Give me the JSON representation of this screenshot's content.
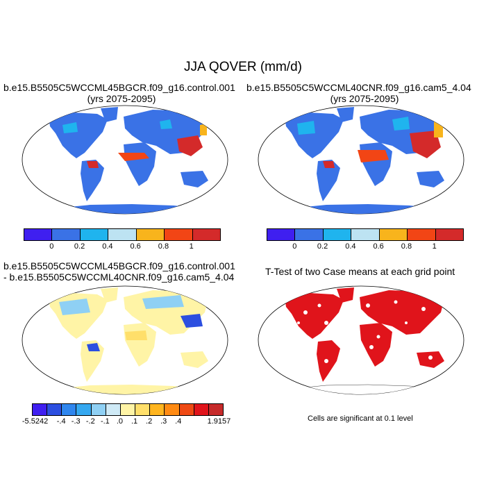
{
  "title": "JJA QOVER (mm/d)",
  "panels": {
    "top_left": {
      "title_line1": "b.e15.B5505C5WCCML45BGCR.f09_g16.control.001",
      "title_line2": "(yrs 2075-2095)"
    },
    "top_right": {
      "title_line1": "b.e15.B5505C5WCCML40CNR.f09_g16.cam5_4.04",
      "title_line2": "(yrs 2075-2095)"
    },
    "bottom_left": {
      "title_line1": "b.e15.B5505C5WCCML45BGCR.f09_g16.control.001",
      "title_line2": "- b.e15.B5505C5WCCML40CNR.f09_g16.cam5_4.04"
    },
    "bottom_right": {
      "title": "T-Test of two Case means at each grid point",
      "footnote": "Cells are significant at 0.1 level"
    }
  },
  "colorbars": {
    "top": {
      "colors": [
        "#3f1ff0",
        "#3a72e6",
        "#1fb4ee",
        "#bde3f2",
        "#f8b41c",
        "#f24515",
        "#d42a2a"
      ],
      "ticks": [
        "0",
        "0.2",
        "0.4",
        "0.6",
        "0.8",
        "1"
      ]
    },
    "bottom": {
      "colors": [
        "#3f1ff0",
        "#2c4fe0",
        "#2f86ee",
        "#35a8f0",
        "#8fd0f4",
        "#cfeaf6",
        "#fff4a6",
        "#ffdf6a",
        "#ffb51f",
        "#ff8a12",
        "#ef4a14",
        "#e0141b",
        "#c62a2a"
      ],
      "ticks": [
        "-5.5242",
        "-.4",
        "-.3",
        "-.2",
        "-.1",
        ".0",
        ".1",
        ".2",
        ".3",
        ".4",
        "1.9157"
      ]
    }
  },
  "map_colors": {
    "ocean": "#ffffff",
    "land_base": "#3a72e6",
    "land_mid": "#1fb4ee",
    "land_high": "#f24515",
    "land_peak": "#d42a2a",
    "land_warm": "#f8b41c",
    "diff_base": "#fff4a6",
    "diff_light_blue": "#8fd0f4",
    "diff_dark_blue": "#2c4fe0",
    "significant": "#e0141b"
  }
}
